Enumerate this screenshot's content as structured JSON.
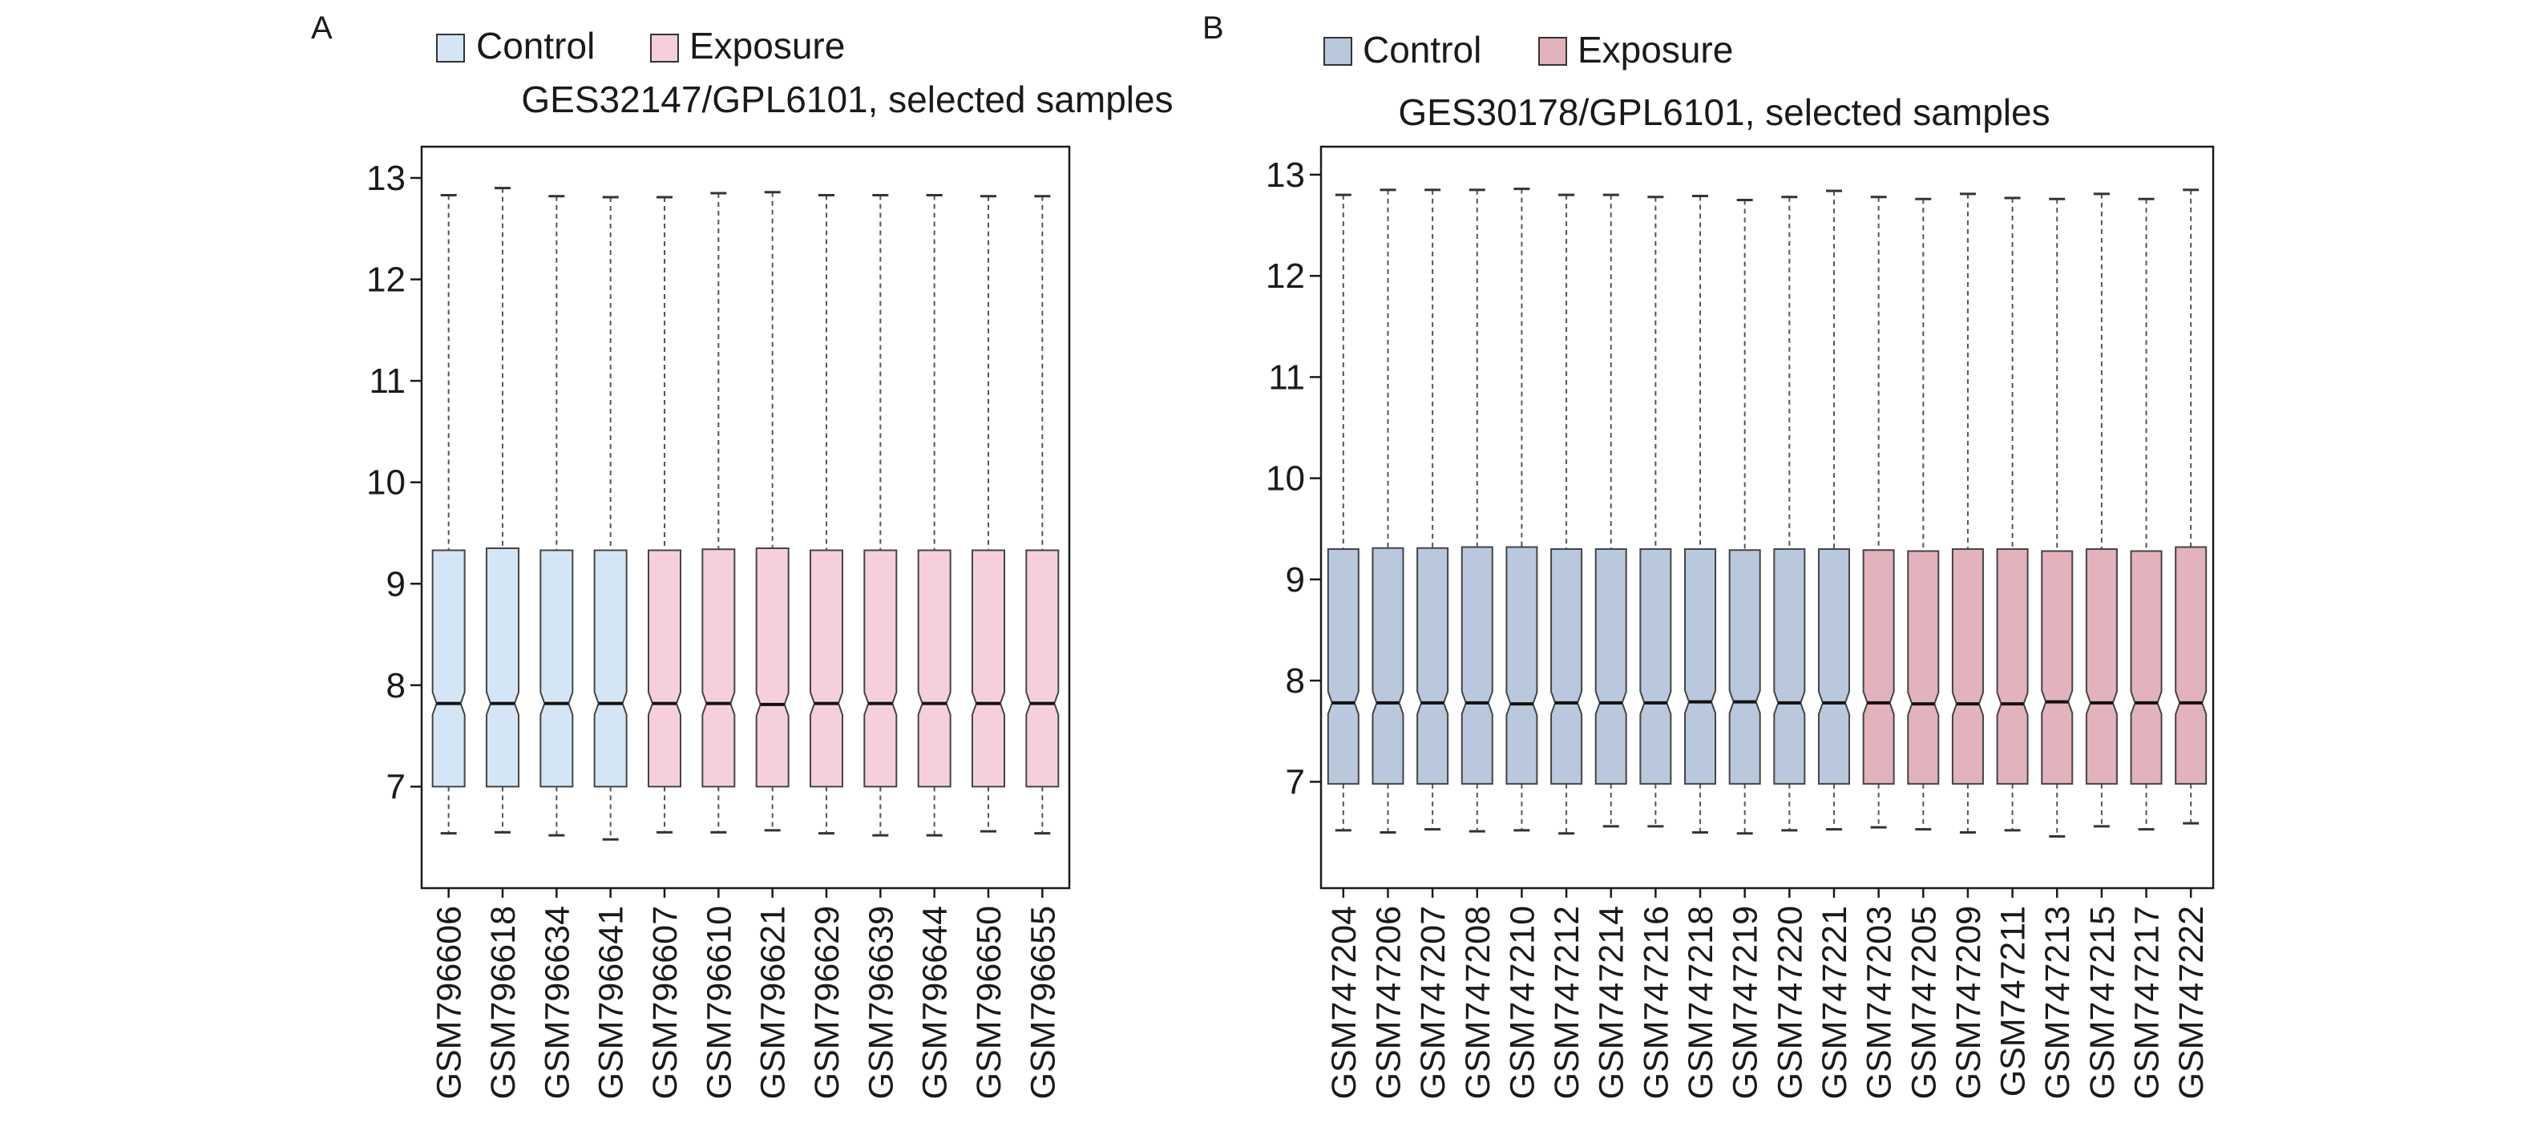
{
  "chart_data": [
    {
      "type": "boxplot",
      "panel_label": "A",
      "title": "GES32147/GPL6101, selected samples",
      "legend": [
        {
          "name": "Control",
          "color": "#d4e6f5"
        },
        {
          "name": "Exposure",
          "color": "#f5d0da"
        }
      ],
      "legend_position": "top",
      "ylim": [
        6.3,
        13.15
      ],
      "yticks": [
        7,
        8,
        9,
        10,
        11,
        12,
        13
      ],
      "categories": [
        "GSM796606",
        "GSM796618",
        "GSM796634",
        "GSM796641",
        "GSM796607",
        "GSM796610",
        "GSM796621",
        "GSM796629",
        "GSM796639",
        "GSM796644",
        "GSM796650",
        "GSM796655"
      ],
      "groups": [
        "Control",
        "Control",
        "Control",
        "Control",
        "Exposure",
        "Exposure",
        "Exposure",
        "Exposure",
        "Exposure",
        "Exposure",
        "Exposure",
        "Exposure"
      ],
      "boxes": [
        {
          "min": 6.54,
          "q1": 7.0,
          "median": 7.82,
          "q3": 9.33,
          "max": 12.83
        },
        {
          "min": 6.55,
          "q1": 7.0,
          "median": 7.82,
          "q3": 9.35,
          "max": 12.9
        },
        {
          "min": 6.52,
          "q1": 7.0,
          "median": 7.82,
          "q3": 9.33,
          "max": 12.82
        },
        {
          "min": 6.48,
          "q1": 7.0,
          "median": 7.82,
          "q3": 9.33,
          "max": 12.81
        },
        {
          "min": 6.55,
          "q1": 7.0,
          "median": 7.82,
          "q3": 9.33,
          "max": 12.81
        },
        {
          "min": 6.55,
          "q1": 7.0,
          "median": 7.82,
          "q3": 9.34,
          "max": 12.85
        },
        {
          "min": 6.57,
          "q1": 7.0,
          "median": 7.81,
          "q3": 9.35,
          "max": 12.86
        },
        {
          "min": 6.54,
          "q1": 7.0,
          "median": 7.82,
          "q3": 9.33,
          "max": 12.83
        },
        {
          "min": 6.52,
          "q1": 7.0,
          "median": 7.82,
          "q3": 9.33,
          "max": 12.83
        },
        {
          "min": 6.52,
          "q1": 7.0,
          "median": 7.82,
          "q3": 9.33,
          "max": 12.83
        },
        {
          "min": 6.56,
          "q1": 7.0,
          "median": 7.82,
          "q3": 9.33,
          "max": 12.82
        },
        {
          "min": 6.54,
          "q1": 7.0,
          "median": 7.82,
          "q3": 9.33,
          "max": 12.82
        }
      ]
    },
    {
      "type": "boxplot",
      "panel_label": "B",
      "title": "GES30178/GPL6101, selected samples",
      "legend": [
        {
          "name": "Control",
          "color": "#b9c8dc"
        },
        {
          "name": "Exposure",
          "color": "#e2b2bd"
        }
      ],
      "legend_position": "top",
      "ylim": [
        6.25,
        13.15
      ],
      "yticks": [
        7,
        8,
        9,
        10,
        11,
        12,
        13
      ],
      "categories": [
        "GSM747204",
        "GSM747206",
        "GSM747207",
        "GSM747208",
        "GSM747210",
        "GSM747212",
        "GSM747214",
        "GSM747216",
        "GSM747218",
        "GSM747219",
        "GSM747220",
        "GSM747221",
        "GSM747203",
        "GSM747205",
        "GSM747209",
        "GSM747211",
        "GSM747213",
        "GSM747215",
        "GSM747217",
        "GSM747222"
      ],
      "groups": [
        "Control",
        "Control",
        "Control",
        "Control",
        "Control",
        "Control",
        "Control",
        "Control",
        "Control",
        "Control",
        "Control",
        "Control",
        "Exposure",
        "Exposure",
        "Exposure",
        "Exposure",
        "Exposure",
        "Exposure",
        "Exposure",
        "Exposure"
      ],
      "boxes": [
        {
          "min": 6.52,
          "q1": 6.98,
          "median": 7.78,
          "q3": 9.3,
          "max": 12.8
        },
        {
          "min": 6.5,
          "q1": 6.98,
          "median": 7.78,
          "q3": 9.31,
          "max": 12.85
        },
        {
          "min": 6.53,
          "q1": 6.98,
          "median": 7.78,
          "q3": 9.31,
          "max": 12.85
        },
        {
          "min": 6.51,
          "q1": 6.98,
          "median": 7.78,
          "q3": 9.32,
          "max": 12.85
        },
        {
          "min": 6.52,
          "q1": 6.98,
          "median": 7.77,
          "q3": 9.32,
          "max": 12.86
        },
        {
          "min": 6.49,
          "q1": 6.98,
          "median": 7.78,
          "q3": 9.3,
          "max": 12.8
        },
        {
          "min": 6.56,
          "q1": 6.98,
          "median": 7.78,
          "q3": 9.3,
          "max": 12.8
        },
        {
          "min": 6.56,
          "q1": 6.98,
          "median": 7.78,
          "q3": 9.3,
          "max": 12.78
        },
        {
          "min": 6.5,
          "q1": 6.98,
          "median": 7.79,
          "q3": 9.3,
          "max": 12.79
        },
        {
          "min": 6.49,
          "q1": 6.98,
          "median": 7.79,
          "q3": 9.29,
          "max": 12.75
        },
        {
          "min": 6.52,
          "q1": 6.98,
          "median": 7.78,
          "q3": 9.3,
          "max": 12.78
        },
        {
          "min": 6.53,
          "q1": 6.98,
          "median": 7.78,
          "q3": 9.3,
          "max": 12.84
        },
        {
          "min": 6.55,
          "q1": 6.98,
          "median": 7.78,
          "q3": 9.29,
          "max": 12.78
        },
        {
          "min": 6.53,
          "q1": 6.98,
          "median": 7.77,
          "q3": 9.28,
          "max": 12.76
        },
        {
          "min": 6.5,
          "q1": 6.98,
          "median": 7.77,
          "q3": 9.3,
          "max": 12.81
        },
        {
          "min": 6.52,
          "q1": 6.98,
          "median": 7.77,
          "q3": 9.3,
          "max": 12.77
        },
        {
          "min": 6.46,
          "q1": 6.98,
          "median": 7.79,
          "q3": 9.28,
          "max": 12.76
        },
        {
          "min": 6.56,
          "q1": 6.98,
          "median": 7.78,
          "q3": 9.3,
          "max": 12.81
        },
        {
          "min": 6.53,
          "q1": 6.98,
          "median": 7.78,
          "q3": 9.28,
          "max": 12.76
        },
        {
          "min": 6.59,
          "q1": 6.98,
          "median": 7.78,
          "q3": 9.32,
          "max": 12.85
        }
      ]
    }
  ]
}
